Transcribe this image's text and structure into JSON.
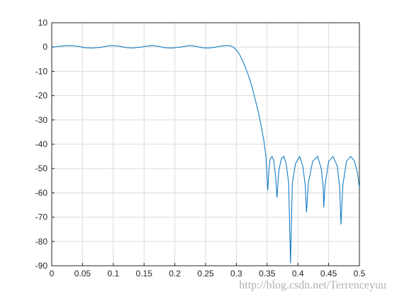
{
  "chart_data": {
    "type": "line",
    "x": [
      0,
      0.01,
      0.02,
      0.031,
      0.045,
      0.055,
      0.065,
      0.08,
      0.09,
      0.1,
      0.11,
      0.12,
      0.13,
      0.145,
      0.155,
      0.164,
      0.175,
      0.185,
      0.195,
      0.21,
      0.218,
      0.226,
      0.236,
      0.245,
      0.255,
      0.265,
      0.275,
      0.285,
      0.29,
      0.295,
      0.3,
      0.305,
      0.31,
      0.315,
      0.32,
      0.325,
      0.33,
      0.335,
      0.34,
      0.345,
      0.348,
      0.351,
      0.353,
      0.355,
      0.358,
      0.361,
      0.364,
      0.366,
      0.369,
      0.373,
      0.377,
      0.381,
      0.385,
      0.388,
      0.391,
      0.396,
      0.403,
      0.408,
      0.412,
      0.414,
      0.417,
      0.424,
      0.432,
      0.438,
      0.441,
      0.442,
      0.444,
      0.45,
      0.457,
      0.464,
      0.468,
      0.47,
      0.473,
      0.479,
      0.486,
      0.492,
      0.497,
      0.5
    ],
    "series": [
      {
        "color": "#0072bd",
        "values": [
          0,
          0.2,
          0.5,
          0.6,
          0.2,
          -0.3,
          -0.4,
          -0.1,
          0.4,
          0.6,
          0.3,
          -0.2,
          -0.4,
          0,
          0.4,
          0.6,
          0.2,
          -0.3,
          -0.4,
          0,
          0.4,
          0.6,
          0.2,
          -0.3,
          -0.4,
          -0.1,
          0.4,
          0.6,
          0.5,
          0,
          -1.2,
          -3,
          -5.5,
          -8.5,
          -12,
          -16,
          -21,
          -26,
          -32,
          -39,
          -45,
          -59,
          -50,
          -46,
          -45,
          -47,
          -54,
          -62,
          -51,
          -46,
          -45,
          -48,
          -56,
          -89,
          -56,
          -48,
          -45,
          -49,
          -57,
          -68,
          -56,
          -47,
          -45,
          -50,
          -57,
          -66,
          -57,
          -47,
          -45,
          -49,
          -58,
          -73,
          -57,
          -47,
          -45,
          -47,
          -52,
          -58
        ]
      }
    ],
    "xlim": [
      0,
      0.5
    ],
    "xticks": [
      0,
      0.05,
      0.1,
      0.15,
      0.2,
      0.25,
      0.3,
      0.35,
      0.4,
      0.45,
      0.5
    ],
    "ylim": [
      -90,
      10
    ],
    "yticks": [
      10,
      0,
      -10,
      -20,
      -30,
      -40,
      -50,
      -60,
      -70,
      -80,
      -90
    ],
    "grid": true
  },
  "watermark": "http://blog.csdn.net/Terrenceyuu"
}
